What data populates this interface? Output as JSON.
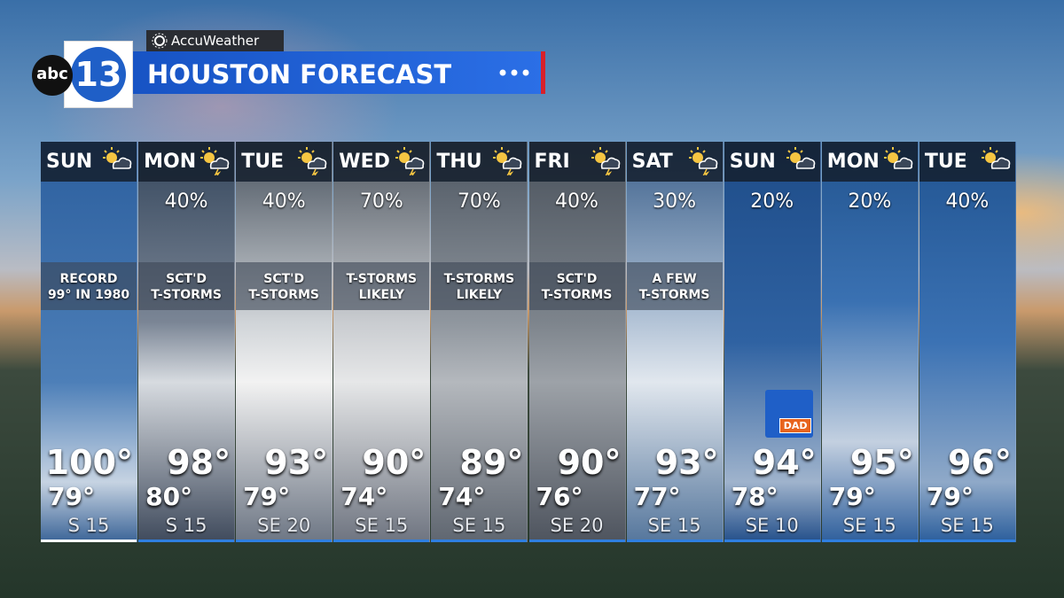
{
  "header": {
    "brand": "AccuWeather",
    "logo": {
      "network": "abc",
      "channel": "13"
    },
    "title": "HOUSTON FORECAST"
  },
  "badge": "DAD",
  "days": [
    {
      "day": "SUN",
      "precip": null,
      "condition": [
        "RECORD",
        "99° IN 1980"
      ],
      "high": "100°",
      "low": "79°",
      "wind": "S 15"
    },
    {
      "day": "MON",
      "precip": "40%",
      "condition": [
        "SCT'D",
        "T-STORMS"
      ],
      "high": "98°",
      "low": "80°",
      "wind": "S 15"
    },
    {
      "day": "TUE",
      "precip": "40%",
      "condition": [
        "SCT'D",
        "T-STORMS"
      ],
      "high": "93°",
      "low": "79°",
      "wind": "SE 20"
    },
    {
      "day": "WED",
      "precip": "70%",
      "condition": [
        "T-STORMS",
        "LIKELY"
      ],
      "high": "90°",
      "low": "74°",
      "wind": "SE 15"
    },
    {
      "day": "THU",
      "precip": "70%",
      "condition": [
        "T-STORMS",
        "LIKELY"
      ],
      "high": "89°",
      "low": "74°",
      "wind": "SE 15"
    },
    {
      "day": "FRI",
      "precip": "40%",
      "condition": [
        "SCT'D",
        "T-STORMS"
      ],
      "high": "90°",
      "low": "76°",
      "wind": "SE 20"
    },
    {
      "day": "SAT",
      "precip": "30%",
      "condition": [
        "A FEW",
        "T-STORMS"
      ],
      "high": "93°",
      "low": "77°",
      "wind": "SE 15"
    },
    {
      "day": "SUN",
      "precip": "20%",
      "condition": null,
      "high": "94°",
      "low": "78°",
      "wind": "SE 10"
    },
    {
      "day": "MON",
      "precip": "20%",
      "condition": null,
      "high": "95°",
      "low": "79°",
      "wind": "SE 15"
    },
    {
      "day": "TUE",
      "precip": "40%",
      "condition": null,
      "high": "96°",
      "low": "79°",
      "wind": "SE 15"
    }
  ]
}
